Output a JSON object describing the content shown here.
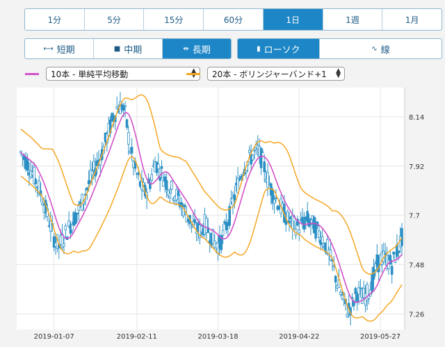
{
  "periods": {
    "items": [
      "1分",
      "5分",
      "15分",
      "60分",
      "1日",
      "1週",
      "1月"
    ],
    "active": 4
  },
  "ranges": {
    "items": [
      {
        "label": "短期",
        "icon": "short-range-icon"
      },
      {
        "label": "中期",
        "icon": "mid-range-icon"
      },
      {
        "label": "長期",
        "icon": "long-range-icon"
      }
    ],
    "active": 2
  },
  "chart_types": {
    "items": [
      {
        "label": "ローソク",
        "icon": "candlestick-icon"
      },
      {
        "label": "線",
        "icon": "line-chart-icon"
      }
    ],
    "active": 0
  },
  "indicators": {
    "ma": {
      "label": "10本 - 単純平均移動",
      "color": "#d24fc8"
    },
    "bb": {
      "label": "20本 - ボリンジャーバンド+1",
      "color": "#f5a623"
    }
  },
  "chart_data": {
    "type": "candlestick",
    "y_ticks": [
      "8.14",
      "7.92",
      "7.7",
      "7.48",
      "7.26"
    ],
    "x_ticks": [
      "2019-01-07",
      "2019-02-11",
      "2019-03-18",
      "2019-04-22",
      "2019-05-27"
    ],
    "y_range": [
      7.19,
      8.27
    ],
    "grid": true,
    "colors": {
      "candle": "#2a8fc4",
      "ma": "#d24fc8",
      "bb": "#f5a623",
      "grid": "#e6e6e6"
    },
    "close_path": [
      [
        0,
        7.98
      ],
      [
        5,
        7.92
      ],
      [
        10,
        7.84
      ],
      [
        13,
        7.78
      ],
      [
        16,
        7.7
      ],
      [
        20,
        7.6
      ],
      [
        23,
        7.56
      ],
      [
        27,
        7.62
      ],
      [
        30,
        7.66
      ],
      [
        33,
        7.7
      ],
      [
        36,
        7.74
      ],
      [
        40,
        7.82
      ],
      [
        43,
        7.88
      ],
      [
        46,
        7.93
      ],
      [
        49,
        7.98
      ],
      [
        52,
        8.05
      ],
      [
        55,
        8.12
      ],
      [
        58,
        8.18
      ],
      [
        61,
        8.19
      ],
      [
        63,
        8.15
      ],
      [
        66,
        8.0
      ],
      [
        69,
        7.9
      ],
      [
        72,
        7.84
      ],
      [
        75,
        7.8
      ],
      [
        78,
        7.85
      ],
      [
        81,
        7.94
      ],
      [
        84,
        7.9
      ],
      [
        87,
        7.86
      ],
      [
        90,
        7.82
      ],
      [
        93,
        7.8
      ],
      [
        96,
        7.76
      ],
      [
        99,
        7.72
      ],
      [
        102,
        7.68
      ],
      [
        105,
        7.64
      ],
      [
        108,
        7.63
      ],
      [
        111,
        7.66
      ],
      [
        114,
        7.62
      ],
      [
        117,
        7.58
      ],
      [
        120,
        7.57
      ],
      [
        123,
        7.63
      ],
      [
        126,
        7.7
      ],
      [
        128,
        7.76
      ],
      [
        131,
        7.84
      ],
      [
        134,
        7.91
      ],
      [
        137,
        7.94
      ],
      [
        140,
        7.97
      ],
      [
        143,
        7.99
      ],
      [
        146,
        7.94
      ],
      [
        149,
        7.86
      ],
      [
        152,
        7.8
      ],
      [
        155,
        7.76
      ],
      [
        158,
        7.72
      ],
      [
        161,
        7.68
      ],
      [
        164,
        7.66
      ],
      [
        167,
        7.65
      ],
      [
        170,
        7.66
      ],
      [
        173,
        7.68
      ],
      [
        176,
        7.66
      ],
      [
        179,
        7.63
      ],
      [
        182,
        7.6
      ],
      [
        185,
        7.55
      ],
      [
        188,
        7.48
      ],
      [
        191,
        7.4
      ],
      [
        194,
        7.33
      ],
      [
        197,
        7.28
      ],
      [
        200,
        7.3
      ],
      [
        203,
        7.36
      ],
      [
        206,
        7.33
      ],
      [
        209,
        7.35
      ],
      [
        212,
        7.4
      ],
      [
        215,
        7.48
      ],
      [
        218,
        7.51
      ],
      [
        221,
        7.5
      ],
      [
        224,
        7.48
      ],
      [
        227,
        7.54
      ],
      [
        230,
        7.6
      ]
    ]
  }
}
